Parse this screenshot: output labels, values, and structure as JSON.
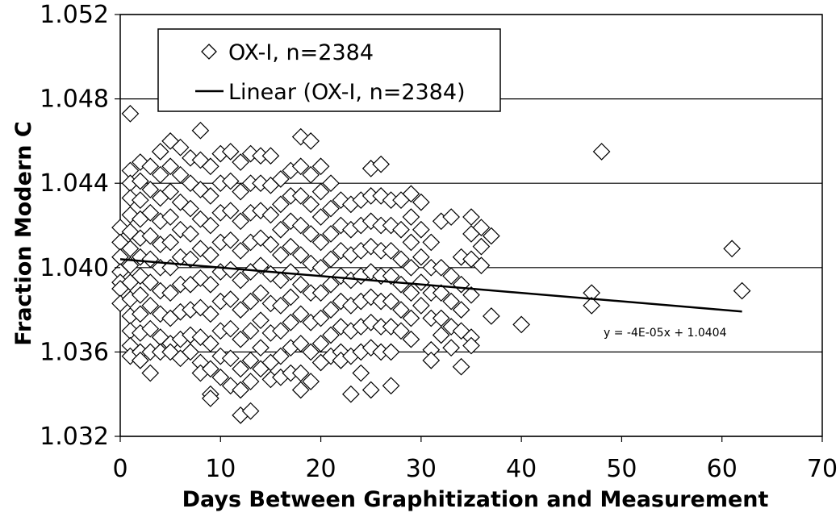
{
  "chart_data": {
    "type": "scatter",
    "xlabel": "Days Between Graphitization and Measurement",
    "ylabel": "Fraction Modern C",
    "xlim": [
      0,
      70
    ],
    "ylim": [
      1.032,
      1.052
    ],
    "x_ticks": [
      "0",
      "10",
      "20",
      "30",
      "40",
      "50",
      "60",
      "70"
    ],
    "y_ticks": [
      "1.032",
      "1.036",
      "1.040",
      "1.044",
      "1.048",
      "1.052"
    ],
    "grid": "horizontal",
    "legend": {
      "placement": "top-left",
      "entries": [
        "OX-I, n=2384",
        "Linear (OX-I, n=2384)"
      ]
    },
    "trendline": {
      "name": "Linear (OX-I, n=2384)",
      "equation": "y = -4E-05x + 1.0404",
      "slope": -4e-05,
      "intercept": 1.0404,
      "x_range": [
        0,
        62
      ]
    },
    "series": [
      {
        "name": "OX-I, n=2384",
        "marker": "diamond",
        "points": [
          [
            0,
            1.0419
          ],
          [
            0,
            1.0412
          ],
          [
            0,
            1.0405
          ],
          [
            0,
            1.0398
          ],
          [
            0,
            1.0393
          ],
          [
            0,
            1.039
          ],
          [
            0,
            1.0383
          ],
          [
            1,
            1.0473
          ],
          [
            1,
            1.0446
          ],
          [
            1,
            1.044
          ],
          [
            1,
            1.0433
          ],
          [
            1,
            1.0425
          ],
          [
            1,
            1.0417
          ],
          [
            1,
            1.0409
          ],
          [
            1,
            1.0401
          ],
          [
            1,
            1.0393
          ],
          [
            1,
            1.0385
          ],
          [
            1,
            1.0377
          ],
          [
            1,
            1.037
          ],
          [
            1,
            1.0363
          ],
          [
            1,
            1.0358
          ],
          [
            2,
            1.045
          ],
          [
            2,
            1.0441
          ],
          [
            2,
            1.0432
          ],
          [
            2,
            1.0423
          ],
          [
            2,
            1.0414
          ],
          [
            2,
            1.0405
          ],
          [
            2,
            1.0396
          ],
          [
            2,
            1.0387
          ],
          [
            2,
            1.0378
          ],
          [
            2,
            1.0369
          ],
          [
            2,
            1.036
          ],
          [
            2,
            1.0356
          ],
          [
            3,
            1.0448
          ],
          [
            3,
            1.0437
          ],
          [
            3,
            1.0426
          ],
          [
            3,
            1.0415
          ],
          [
            3,
            1.0404
          ],
          [
            3,
            1.0393
          ],
          [
            3,
            1.0382
          ],
          [
            3,
            1.0371
          ],
          [
            3,
            1.036
          ],
          [
            3,
            1.035
          ],
          [
            4,
            1.0455
          ],
          [
            4,
            1.0444
          ],
          [
            4,
            1.0433
          ],
          [
            4,
            1.0422
          ],
          [
            4,
            1.0411
          ],
          [
            4,
            1.04
          ],
          [
            4,
            1.0389
          ],
          [
            4,
            1.0378
          ],
          [
            4,
            1.0367
          ],
          [
            4,
            1.036
          ],
          [
            5,
            1.046
          ],
          [
            5,
            1.0448
          ],
          [
            5,
            1.0436
          ],
          [
            5,
            1.0424
          ],
          [
            5,
            1.0412
          ],
          [
            5,
            1.04
          ],
          [
            5,
            1.0388
          ],
          [
            5,
            1.0376
          ],
          [
            5,
            1.0364
          ],
          [
            5,
            1.036
          ],
          [
            6,
            1.0457
          ],
          [
            6,
            1.0444
          ],
          [
            6,
            1.0431
          ],
          [
            6,
            1.0418
          ],
          [
            6,
            1.0405
          ],
          [
            6,
            1.0392
          ],
          [
            6,
            1.0379
          ],
          [
            6,
            1.0366
          ],
          [
            6,
            1.0357
          ],
          [
            7,
            1.0452
          ],
          [
            7,
            1.044
          ],
          [
            7,
            1.0428
          ],
          [
            7,
            1.0416
          ],
          [
            7,
            1.0404
          ],
          [
            7,
            1.0392
          ],
          [
            7,
            1.038
          ],
          [
            7,
            1.0368
          ],
          [
            7,
            1.036
          ],
          [
            8,
            1.0465
          ],
          [
            8,
            1.0451
          ],
          [
            8,
            1.0437
          ],
          [
            8,
            1.0423
          ],
          [
            8,
            1.0409
          ],
          [
            8,
            1.0395
          ],
          [
            8,
            1.0381
          ],
          [
            8,
            1.0367
          ],
          [
            8,
            1.0355
          ],
          [
            8,
            1.035
          ],
          [
            9,
            1.0448
          ],
          [
            9,
            1.0434
          ],
          [
            9,
            1.042
          ],
          [
            9,
            1.0406
          ],
          [
            9,
            1.0392
          ],
          [
            9,
            1.0378
          ],
          [
            9,
            1.0364
          ],
          [
            9,
            1.0352
          ],
          [
            9,
            1.034
          ],
          [
            9,
            1.0338
          ],
          [
            10,
            1.0454
          ],
          [
            10,
            1.044
          ],
          [
            10,
            1.0426
          ],
          [
            10,
            1.0412
          ],
          [
            10,
            1.0398
          ],
          [
            10,
            1.0384
          ],
          [
            10,
            1.037
          ],
          [
            10,
            1.0358
          ],
          [
            10,
            1.0348
          ],
          [
            11,
            1.0455
          ],
          [
            11,
            1.0441
          ],
          [
            11,
            1.0427
          ],
          [
            11,
            1.0413
          ],
          [
            11,
            1.0399
          ],
          [
            11,
            1.0385
          ],
          [
            11,
            1.0371
          ],
          [
            11,
            1.0357
          ],
          [
            11,
            1.0344
          ],
          [
            12,
            1.045
          ],
          [
            12,
            1.0436
          ],
          [
            12,
            1.0422
          ],
          [
            12,
            1.0408
          ],
          [
            12,
            1.0394
          ],
          [
            12,
            1.038
          ],
          [
            12,
            1.0366
          ],
          [
            12,
            1.0352
          ],
          [
            12,
            1.0342
          ],
          [
            12,
            1.033
          ],
          [
            13,
            1.0454
          ],
          [
            13,
            1.044
          ],
          [
            13,
            1.0426
          ],
          [
            13,
            1.0412
          ],
          [
            13,
            1.0398
          ],
          [
            13,
            1.0384
          ],
          [
            13,
            1.037
          ],
          [
            13,
            1.0356
          ],
          [
            13,
            1.0346
          ],
          [
            13,
            1.0332
          ],
          [
            14,
            1.0453
          ],
          [
            14,
            1.044
          ],
          [
            14,
            1.0427
          ],
          [
            14,
            1.0414
          ],
          [
            14,
            1.0401
          ],
          [
            14,
            1.0388
          ],
          [
            14,
            1.0375
          ],
          [
            14,
            1.0362
          ],
          [
            14,
            1.0352
          ],
          [
            15,
            1.0453
          ],
          [
            15,
            1.0439
          ],
          [
            15,
            1.0425
          ],
          [
            15,
            1.0411
          ],
          [
            15,
            1.0397
          ],
          [
            15,
            1.0383
          ],
          [
            15,
            1.0369
          ],
          [
            15,
            1.0355
          ],
          [
            15,
            1.0347
          ],
          [
            16,
            1.0442
          ],
          [
            16,
            1.043
          ],
          [
            16,
            1.0418
          ],
          [
            16,
            1.0406
          ],
          [
            16,
            1.0394
          ],
          [
            16,
            1.0382
          ],
          [
            16,
            1.037
          ],
          [
            16,
            1.0358
          ],
          [
            16,
            1.0348
          ],
          [
            17,
            1.0446
          ],
          [
            17,
            1.0434
          ],
          [
            17,
            1.0422
          ],
          [
            17,
            1.041
          ],
          [
            17,
            1.0398
          ],
          [
            17,
            1.0386
          ],
          [
            17,
            1.0374
          ],
          [
            17,
            1.0362
          ],
          [
            17,
            1.035
          ],
          [
            18,
            1.0462
          ],
          [
            18,
            1.0448
          ],
          [
            18,
            1.0434
          ],
          [
            18,
            1.042
          ],
          [
            18,
            1.0406
          ],
          [
            18,
            1.0392
          ],
          [
            18,
            1.0378
          ],
          [
            18,
            1.0364
          ],
          [
            18,
            1.035
          ],
          [
            18,
            1.0342
          ],
          [
            19,
            1.046
          ],
          [
            19,
            1.0444
          ],
          [
            19,
            1.043
          ],
          [
            19,
            1.0416
          ],
          [
            19,
            1.0402
          ],
          [
            19,
            1.0388
          ],
          [
            19,
            1.0374
          ],
          [
            19,
            1.036
          ],
          [
            19,
            1.0346
          ],
          [
            20,
            1.0448
          ],
          [
            20,
            1.0436
          ],
          [
            20,
            1.0424
          ],
          [
            20,
            1.0412
          ],
          [
            20,
            1.04
          ],
          [
            20,
            1.0388
          ],
          [
            20,
            1.0376
          ],
          [
            20,
            1.0364
          ],
          [
            20,
            1.0355
          ],
          [
            21,
            1.044
          ],
          [
            21,
            1.0428
          ],
          [
            21,
            1.0416
          ],
          [
            21,
            1.0404
          ],
          [
            21,
            1.0392
          ],
          [
            21,
            1.038
          ],
          [
            21,
            1.0368
          ],
          [
            21,
            1.0358
          ],
          [
            22,
            1.0432
          ],
          [
            22,
            1.042
          ],
          [
            22,
            1.0408
          ],
          [
            22,
            1.0396
          ],
          [
            22,
            1.0384
          ],
          [
            22,
            1.0372
          ],
          [
            22,
            1.036
          ],
          [
            22,
            1.0356
          ],
          [
            23,
            1.043
          ],
          [
            23,
            1.0418
          ],
          [
            23,
            1.0406
          ],
          [
            23,
            1.0394
          ],
          [
            23,
            1.0382
          ],
          [
            23,
            1.037
          ],
          [
            23,
            1.0358
          ],
          [
            23,
            1.034
          ],
          [
            24,
            1.0432
          ],
          [
            24,
            1.042
          ],
          [
            24,
            1.0408
          ],
          [
            24,
            1.0396
          ],
          [
            24,
            1.0384
          ],
          [
            24,
            1.0372
          ],
          [
            24,
            1.036
          ],
          [
            24,
            1.035
          ],
          [
            25,
            1.0447
          ],
          [
            25,
            1.0434
          ],
          [
            25,
            1.0422
          ],
          [
            25,
            1.041
          ],
          [
            25,
            1.0398
          ],
          [
            25,
            1.0386
          ],
          [
            25,
            1.0374
          ],
          [
            25,
            1.0362
          ],
          [
            25,
            1.0342
          ],
          [
            26,
            1.0449
          ],
          [
            26,
            1.0434
          ],
          [
            26,
            1.042
          ],
          [
            26,
            1.0408
          ],
          [
            26,
            1.0396
          ],
          [
            26,
            1.0384
          ],
          [
            26,
            1.0372
          ],
          [
            26,
            1.036
          ],
          [
            27,
            1.0432
          ],
          [
            27,
            1.042
          ],
          [
            27,
            1.0408
          ],
          [
            27,
            1.0396
          ],
          [
            27,
            1.0384
          ],
          [
            27,
            1.0372
          ],
          [
            27,
            1.036
          ],
          [
            27,
            1.0344
          ],
          [
            28,
            1.0432
          ],
          [
            28,
            1.0418
          ],
          [
            28,
            1.0404
          ],
          [
            28,
            1.0392
          ],
          [
            28,
            1.038
          ],
          [
            28,
            1.037
          ],
          [
            29,
            1.0435
          ],
          [
            29,
            1.0424
          ],
          [
            29,
            1.0412
          ],
          [
            29,
            1.04
          ],
          [
            29,
            1.0388
          ],
          [
            29,
            1.0376
          ],
          [
            29,
            1.0366
          ],
          [
            30,
            1.0431
          ],
          [
            30,
            1.0418
          ],
          [
            30,
            1.0405
          ],
          [
            30,
            1.0393
          ],
          [
            30,
            1.0382
          ],
          [
            31,
            1.0412
          ],
          [
            31,
            1.04
          ],
          [
            31,
            1.0388
          ],
          [
            31,
            1.0376
          ],
          [
            31,
            1.0361
          ],
          [
            31,
            1.0356
          ],
          [
            32,
            1.0422
          ],
          [
            32,
            1.04
          ],
          [
            32,
            1.0388
          ],
          [
            32,
            1.0376
          ],
          [
            32,
            1.0368
          ],
          [
            33,
            1.0424
          ],
          [
            33,
            1.0396
          ],
          [
            33,
            1.0384
          ],
          [
            33,
            1.0372
          ],
          [
            33,
            1.0362
          ],
          [
            34,
            1.0405
          ],
          [
            34,
            1.0392
          ],
          [
            34,
            1.038
          ],
          [
            34,
            1.037
          ],
          [
            34,
            1.0353
          ],
          [
            35,
            1.0424
          ],
          [
            35,
            1.0416
          ],
          [
            35,
            1.0404
          ],
          [
            35,
            1.0387
          ],
          [
            35,
            1.0367
          ],
          [
            35,
            1.0363
          ],
          [
            36,
            1.0419
          ],
          [
            36,
            1.041
          ],
          [
            36,
            1.0401
          ],
          [
            37,
            1.0415
          ],
          [
            37,
            1.0377
          ],
          [
            40,
            1.0373
          ],
          [
            47,
            1.0388
          ],
          [
            47,
            1.0382
          ],
          [
            48,
            1.0455
          ],
          [
            61,
            1.0409
          ],
          [
            62,
            1.0389
          ]
        ]
      }
    ]
  }
}
